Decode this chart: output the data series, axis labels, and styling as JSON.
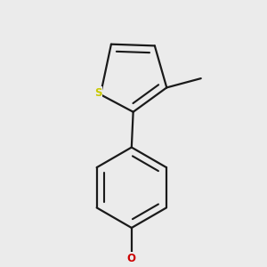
{
  "bg_color": "#ebebeb",
  "bond_color": "#1a1a1a",
  "S_color": "#c8c800",
  "O_color": "#cc0000",
  "bond_lw": 1.6,
  "S_label": "S",
  "O_label": "O"
}
